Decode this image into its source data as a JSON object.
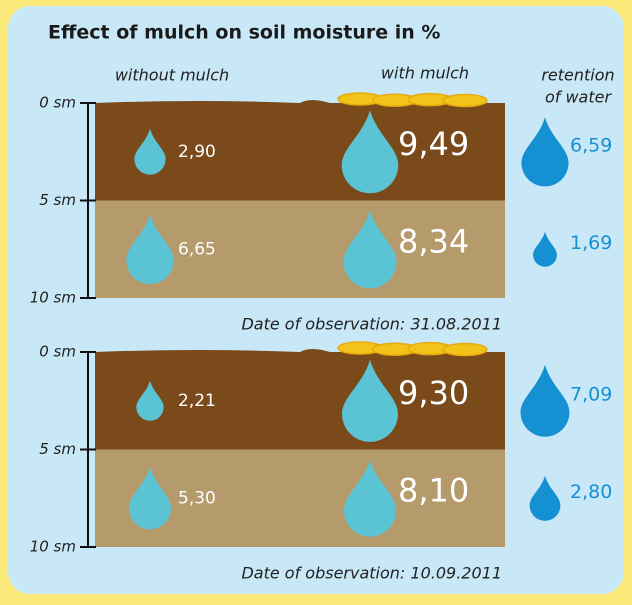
{
  "title": "Effect of mulch on soil moisture in %",
  "column_headers": {
    "without": "without mulch",
    "with": "with mulch",
    "retention": [
      "retention",
      "of water"
    ]
  },
  "panels": [
    {
      "depth_ticks": [
        {
          "value": 0,
          "label": "0 sm"
        },
        {
          "value": 5,
          "label": "5 sm"
        },
        {
          "value": 10,
          "label": "10 sm"
        }
      ],
      "rows": [
        {
          "without": {
            "value": 2.9,
            "label": "2,90"
          },
          "with": {
            "value": 9.49,
            "label": "9,49"
          },
          "retention": {
            "value": 6.59,
            "label": "6,59"
          }
        },
        {
          "without": {
            "value": 6.65,
            "label": "6,65"
          },
          "with": {
            "value": 8.34,
            "label": "8,34"
          },
          "retention": {
            "value": 1.69,
            "label": "1,69"
          }
        }
      ],
      "date": "Date of observation: 31.08.2011"
    },
    {
      "depth_ticks": [
        {
          "value": 0,
          "label": "0 sm"
        },
        {
          "value": 5,
          "label": "5 sm"
        },
        {
          "value": 10,
          "label": "10 sm"
        }
      ],
      "rows": [
        {
          "without": {
            "value": 2.21,
            "label": "2,21"
          },
          "with": {
            "value": 9.3,
            "label": "9,30"
          },
          "retention": {
            "value": 7.09,
            "label": "7,09"
          }
        },
        {
          "without": {
            "value": 5.3,
            "label": "5,30"
          },
          "with": {
            "value": 8.1,
            "label": "8,10"
          },
          "retention": {
            "value": 2.8,
            "label": "2,80"
          }
        }
      ],
      "date": "Date of observation: 10.09.2011"
    }
  ]
}
